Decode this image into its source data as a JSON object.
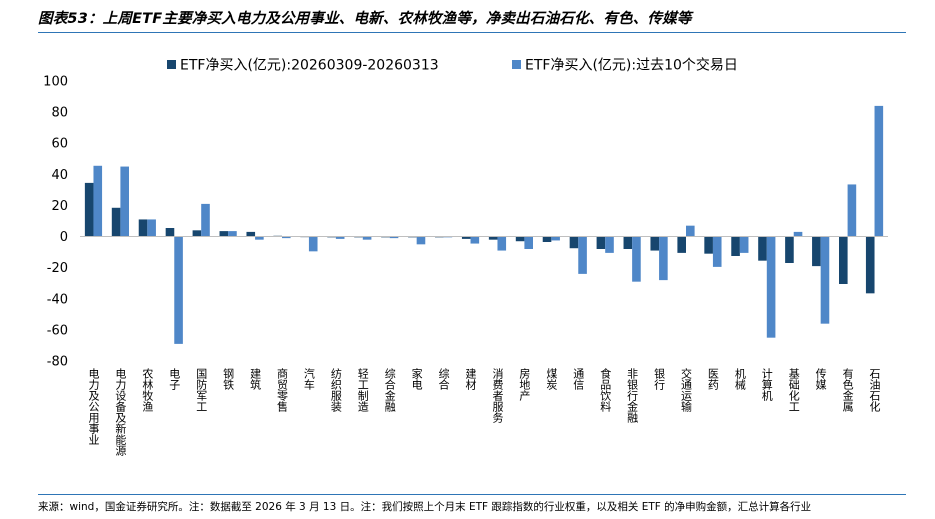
{
  "header": {
    "title": "图表53：上周ETF主要净买入电力及公用事业、电新、农林牧渔等，净卖出石油石化、有色、传媒等"
  },
  "footer": {
    "source": "来源：wind，国金证券研究所。注：数据截至 2026 年 3 月 13 日。注：我们按照上个月末 ETF 跟踪指数的行业权重，以及相关 ETF 的净申购金额，汇总计算各行业"
  },
  "colors": {
    "series1": "#17466e",
    "series2": "#4f87c8",
    "rule": "#2e75b6"
  },
  "chart_data": {
    "type": "bar",
    "title": "",
    "xlabel": "",
    "ylabel": "",
    "ylim": [
      -80,
      100
    ],
    "yticks": [
      -80,
      -60,
      -40,
      -20,
      0,
      20,
      40,
      60,
      80,
      100
    ],
    "grid": false,
    "legend": "top",
    "categories": [
      "电力及公用事业",
      "电力设备及新能源",
      "农林牧渔",
      "电子",
      "国防军工",
      "钢铁",
      "建筑",
      "商贸零售",
      "汽车",
      "纺织服装",
      "轻工制造",
      "综合金融",
      "家电",
      "综合",
      "建材",
      "消费者服务",
      "房地产",
      "煤炭",
      "通信",
      "食品饮料",
      "非银行金融",
      "银行",
      "交通运输",
      "医药",
      "机械",
      "计算机",
      "基础化工",
      "传媒",
      "有色金属",
      "石油石化"
    ],
    "series": [
      {
        "name": "ETF净买入(亿元):20260309-20260313",
        "values": [
          34.5,
          18.5,
          11,
          5.5,
          4,
          3.5,
          3,
          0.5,
          0,
          -0.5,
          -0.5,
          -0.5,
          -0.5,
          -0.5,
          -1.5,
          -2,
          -3,
          -3.5,
          -7.5,
          -8,
          -8,
          -9,
          -10.5,
          -11,
          -12.5,
          -15.5,
          -17,
          -19,
          -30.5,
          -36.5
        ]
      },
      {
        "name": "ETF净买入(亿元):过去10个交易日",
        "values": [
          45.5,
          45,
          11,
          -69,
          21,
          3.5,
          -2,
          -1,
          -9.5,
          -1.5,
          -2,
          -1,
          -5,
          -0.5,
          -4.5,
          -9,
          -8,
          -2.5,
          -24,
          -10.5,
          -29,
          -28,
          7,
          -19.5,
          -10.5,
          -65,
          3,
          -56,
          33.5,
          84
        ]
      }
    ]
  }
}
